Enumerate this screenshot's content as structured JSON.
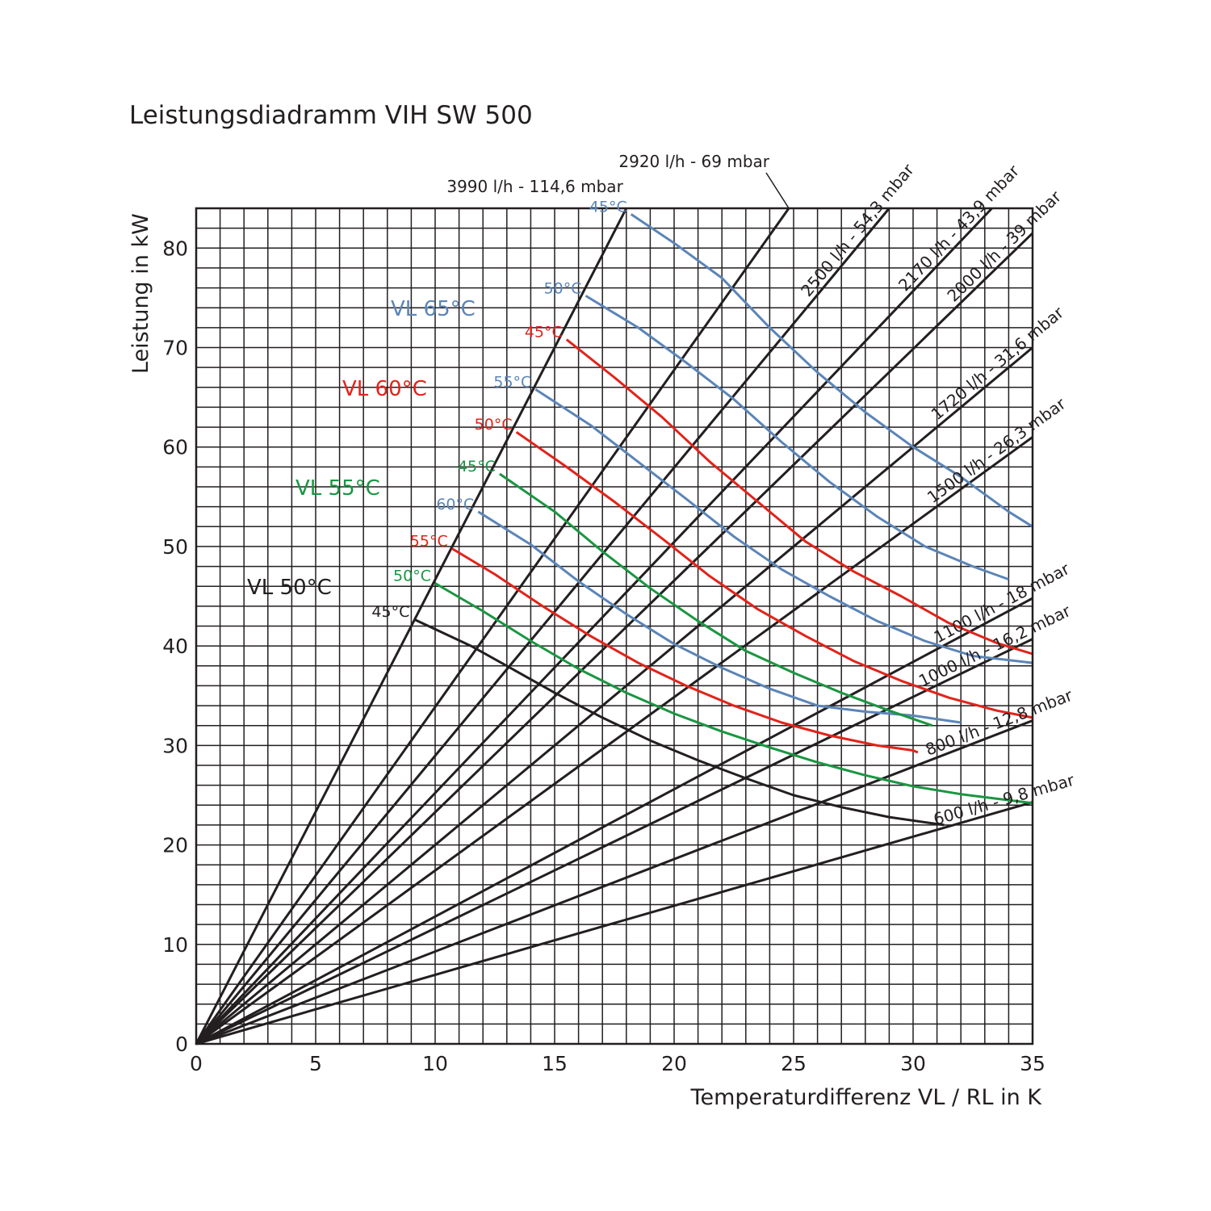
{
  "chart_data": {
    "type": "line",
    "title": "Leistungsdiadramm VIH SW 500",
    "xlabel": "Temperaturdifferenz VL / RL in K",
    "ylabel": "Leistung in kW",
    "xlim": [
      0,
      35
    ],
    "ylim": [
      0,
      84
    ],
    "x_ticks": [
      0,
      5,
      10,
      15,
      20,
      25,
      30,
      35
    ],
    "y_ticks": [
      0,
      10,
      20,
      30,
      40,
      50,
      60,
      70,
      80
    ],
    "grid": true,
    "colors": {
      "grid": "#231f20",
      "flow_lines": "#231f20",
      "VL 50°C": "#231f20",
      "VL 55°C": "#1a9641",
      "VL 60°C": "#e2231a",
      "VL 65°C": "#5b85b8"
    },
    "flow_lines": [
      {
        "label": "3990 l/h - 114,6 mbar",
        "x": [
          0,
          18
        ],
        "y": [
          0,
          84
        ]
      },
      {
        "label": "2920 l/h - 69 mbar",
        "x": [
          0,
          24.8
        ],
        "y": [
          0,
          84
        ]
      },
      {
        "label": "2500 l/h - 54,3 mbar",
        "x": [
          0,
          29
        ],
        "y": [
          0,
          84
        ]
      },
      {
        "label": "2170 l/h - 43,9 mbar",
        "x": [
          0,
          33.3
        ],
        "y": [
          0,
          84
        ]
      },
      {
        "label": "2000 l/h - 39 mbar",
        "x": [
          0,
          35
        ],
        "y": [
          0,
          81.5
        ]
      },
      {
        "label": "1720 l/h - 31,6 mbar",
        "x": [
          0,
          35
        ],
        "y": [
          0,
          70
        ]
      },
      {
        "label": "1500 l/h - 26,3 mbar",
        "x": [
          0,
          35
        ],
        "y": [
          0,
          61
        ]
      },
      {
        "label": "1100 l/h - 18 mbar",
        "x": [
          0,
          35
        ],
        "y": [
          0,
          44.8
        ]
      },
      {
        "label": "1000 l/h - 16,2 mbar",
        "x": [
          0,
          35
        ],
        "y": [
          0,
          40.7
        ]
      },
      {
        "label": "800 l/h - 12,8 mbar",
        "x": [
          0,
          35
        ],
        "y": [
          0,
          32.5
        ]
      },
      {
        "label": "600 l/h - 9,8 mbar",
        "x": [
          0,
          35
        ],
        "y": [
          0,
          24.3
        ]
      }
    ],
    "series": [
      {
        "name": "VL 50°C",
        "label": "45°C",
        "group": "VL 50°C",
        "x": [
          9.1,
          11.5,
          13,
          15,
          17,
          19,
          21,
          23,
          25,
          27,
          29,
          31.3
        ],
        "y": [
          42.7,
          40,
          38,
          35.3,
          32.8,
          30.5,
          28.5,
          26.7,
          25,
          23.8,
          22.8,
          22
        ]
      },
      {
        "name": "VL 55°C",
        "label": "50°C",
        "group": "VL 55°C",
        "x": [
          10,
          12,
          14,
          16,
          18,
          20,
          22,
          24,
          26,
          28,
          30,
          32,
          34,
          35
        ],
        "y": [
          46.3,
          43.5,
          40.5,
          37.7,
          35.3,
          33.2,
          31.4,
          29.8,
          28.3,
          27,
          25.9,
          25.1,
          24.5,
          24.2
        ]
      },
      {
        "name": "VL 60°C",
        "label": "55°C",
        "group": "VL 60°C",
        "x": [
          10.7,
          12.5,
          14.5,
          16.5,
          18.5,
          20.5,
          22.5,
          24.5,
          26.5,
          28.5,
          30,
          30.2
        ],
        "y": [
          49.8,
          47.2,
          44,
          41,
          38.3,
          36,
          34,
          32.3,
          31,
          30,
          29.5,
          29.3
        ]
      },
      {
        "name": "VL 65°C",
        "label": "60°C",
        "group": "VL 65°C",
        "x": [
          11.8,
          14,
          16,
          18,
          20,
          22,
          24,
          26,
          28,
          30,
          32
        ],
        "y": [
          53.5,
          50.2,
          46.5,
          43.2,
          40.2,
          37.8,
          35.7,
          34,
          33.4,
          33,
          32.3
        ]
      },
      {
        "name": "VL 55°C",
        "label": "45°C",
        "group": "VL 55°C",
        "x": [
          12.7,
          15,
          17,
          19,
          21,
          23,
          25,
          27,
          29,
          30.8
        ],
        "y": [
          57.3,
          53.5,
          49.5,
          45.8,
          42.5,
          39.5,
          37.3,
          35.3,
          33.5,
          32
        ]
      },
      {
        "name": "VL 60°C",
        "label": "50°C",
        "group": "VL 60°C",
        "x": [
          13.4,
          15.5,
          17.5,
          19.5,
          21.5,
          23.5,
          25.5,
          27.5,
          29.5,
          31.5,
          33.5,
          35
        ],
        "y": [
          61.5,
          58,
          54.5,
          50.8,
          47,
          43.7,
          41,
          38.5,
          36.5,
          34.8,
          33.5,
          32.8
        ]
      },
      {
        "name": "VL 65°C",
        "label": "55°C",
        "group": "VL 65°C",
        "x": [
          14.2,
          16.5,
          18.5,
          20.5,
          22.5,
          24.5,
          26.5,
          28.5,
          30.5,
          32.5,
          35
        ],
        "y": [
          65.8,
          62.2,
          58.5,
          54.8,
          51,
          47.7,
          45,
          42.5,
          40.5,
          39,
          38.3
        ]
      },
      {
        "name": "VL 60°C",
        "label": "45°C",
        "group": "VL 60°C",
        "x": [
          15.5,
          17.5,
          19.5,
          21.5,
          23.5,
          25.5,
          27.5,
          29.5,
          31.5,
          33.5,
          35
        ],
        "y": [
          70.8,
          67,
          63,
          58.5,
          54.5,
          50.5,
          47.5,
          45,
          42.3,
          40.3,
          39.2
        ]
      },
      {
        "name": "VL 65°C",
        "label": "50°C",
        "group": "VL 65°C",
        "x": [
          16.3,
          18.5,
          20.5,
          22.5,
          24.5,
          26.5,
          28.5,
          30.5,
          32.5,
          34
        ],
        "y": [
          75.2,
          72,
          68.5,
          64.8,
          60.5,
          56.5,
          53,
          50,
          48,
          46.7
        ]
      },
      {
        "name": "VL 65°C",
        "label": "45°C",
        "group": "VL 65°C",
        "x": [
          18.2,
          20,
          22,
          24,
          26,
          28,
          30,
          32,
          34,
          35
        ],
        "y": [
          83.4,
          80.5,
          77,
          72,
          67.5,
          63.5,
          60,
          57,
          53.5,
          52
        ]
      }
    ],
    "group_labels": [
      {
        "text": "VL 65°C",
        "group": "VL 65°C"
      },
      {
        "text": "VL 60°C",
        "group": "VL 60°C"
      },
      {
        "text": "VL 55°C",
        "group": "VL 55°C"
      },
      {
        "text": "VL 50°C",
        "group": "VL 50°C"
      }
    ]
  }
}
